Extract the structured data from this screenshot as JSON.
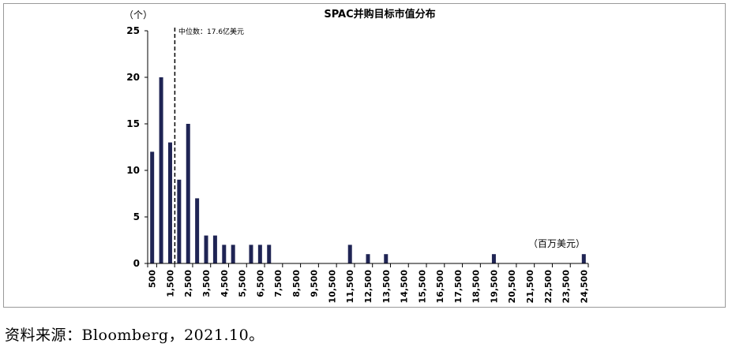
{
  "chart_data": {
    "type": "bar",
    "title": "SPAC并购目标市值分布",
    "y_unit": "（个）",
    "x_unit": "（百万美元）",
    "ylim": [
      0,
      25
    ],
    "y_ticks": [
      "0",
      "5",
      "10",
      "15",
      "20",
      "25"
    ],
    "x_tick_labels": [
      "500",
      "1,500",
      "2,500",
      "3,500",
      "4,500",
      "5,500",
      "6,500",
      "7,500",
      "8,500",
      "9,500",
      "10,500",
      "11,500",
      "12,500",
      "13,500",
      "14,500",
      "15,500",
      "16,500",
      "17,500",
      "18,500",
      "19,500",
      "20,500",
      "21,500",
      "22,500",
      "23,500",
      "24,500"
    ],
    "bin_centers": [
      500,
      1000,
      1500,
      2000,
      2500,
      3000,
      3500,
      4000,
      4500,
      5000,
      5500,
      6000,
      6500,
      7000,
      7500,
      8000,
      8500,
      9000,
      9500,
      10000,
      10500,
      11000,
      11500,
      12000,
      12500,
      13000,
      13500,
      14000,
      14500,
      15000,
      15500,
      16000,
      16500,
      17000,
      17500,
      18000,
      18500,
      19000,
      19500,
      20000,
      20500,
      21000,
      21500,
      22000,
      22500,
      23000,
      23500,
      24000,
      24500
    ],
    "values": [
      12,
      20,
      13,
      9,
      15,
      7,
      3,
      3,
      2,
      2,
      0,
      2,
      2,
      2,
      0,
      0,
      0,
      0,
      0,
      0,
      0,
      0,
      2,
      0,
      1,
      0,
      1,
      0,
      0,
      0,
      0,
      0,
      0,
      0,
      0,
      0,
      0,
      0,
      1,
      0,
      0,
      0,
      0,
      0,
      0,
      0,
      0,
      0,
      1
    ],
    "median": {
      "value": 1760,
      "label": "中位数：17.6亿美元"
    },
    "colors": {
      "bar": "#1f2454",
      "axis": "#000000"
    }
  },
  "source": "资料来源：Bloomberg，2021.10。"
}
